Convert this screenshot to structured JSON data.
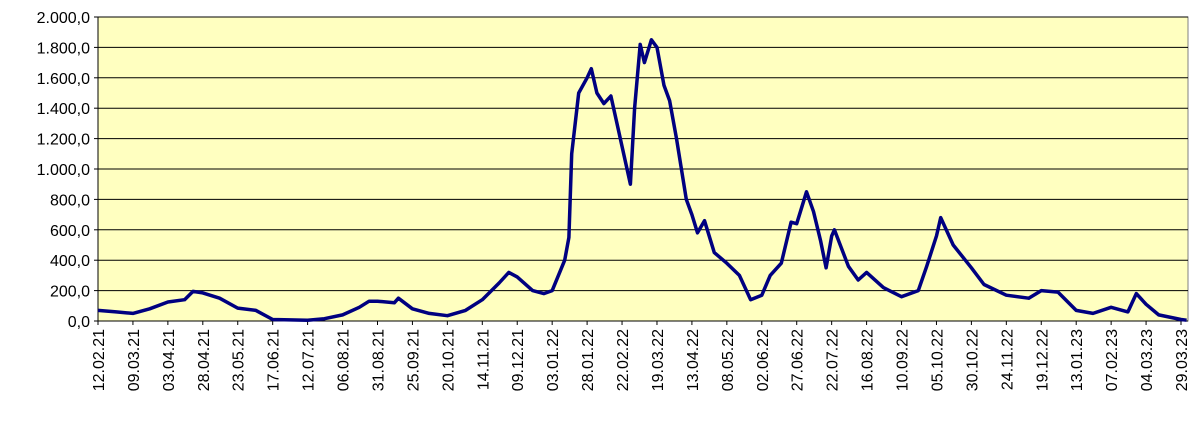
{
  "chart_data": {
    "type": "line",
    "x": [
      "12.02.21",
      "25.02.21",
      "09.03.21",
      "21.03.21",
      "03.04.21",
      "15.04.21",
      "21.04.21",
      "28.04.21",
      "10.05.21",
      "23.05.21",
      "05.06.21",
      "17.06.21",
      "12.07.21",
      "24.07.21",
      "06.08.21",
      "18.08.21",
      "25.08.21",
      "31.08.21",
      "12.09.21",
      "15.09.21",
      "25.09.21",
      "07.10.21",
      "20.10.21",
      "02.11.21",
      "14.11.21",
      "26.11.21",
      "03.12.21",
      "09.12.21",
      "20.12.21",
      "28.12.21",
      "03.01.22",
      "12.01.22",
      "15.01.22",
      "17.01.22",
      "22.01.22",
      "28.01.22",
      "31.01.22",
      "04.02.22",
      "09.02.22",
      "14.02.22",
      "22.02.22",
      "28.02.22",
      "03.03.22",
      "07.03.22",
      "10.03.22",
      "15.03.22",
      "19.03.22",
      "24.03.22",
      "28.03.22",
      "02.04.22",
      "09.04.22",
      "13.04.22",
      "17.04.22",
      "22.04.22",
      "29.04.22",
      "08.05.22",
      "17.05.22",
      "20.05.22",
      "25.05.22",
      "02.06.22",
      "08.06.22",
      "16.06.22",
      "23.06.22",
      "27.06.22",
      "04.07.22",
      "09.07.22",
      "14.07.22",
      "18.07.22",
      "22.07.22",
      "24.07.22",
      "03.08.22",
      "10.08.22",
      "16.08.22",
      "28.08.22",
      "10.09.22",
      "22.09.22",
      "28.09.22",
      "05.10.22",
      "08.10.22",
      "17.10.22",
      "30.10.22",
      "08.11.22",
      "24.11.22",
      "10.12.22",
      "19.12.22",
      "31.12.22",
      "13.01.23",
      "25.01.23",
      "07.02.23",
      "19.02.23",
      "25.02.23",
      "04.03.23",
      "13.03.23",
      "29.03.23",
      "02.04.23"
    ],
    "series": [
      {
        "color": "#000080",
        "values": [
          70,
          60,
          50,
          80,
          125,
          140,
          195,
          185,
          150,
          85,
          70,
          10,
          5,
          15,
          40,
          90,
          130,
          130,
          120,
          150,
          80,
          50,
          35,
          70,
          140,
          250,
          320,
          290,
          200,
          180,
          200,
          400,
          550,
          1100,
          1500,
          1600,
          1660,
          1500,
          1430,
          1480,
          1150,
          900,
          1400,
          1820,
          1700,
          1850,
          1800,
          1550,
          1450,
          1200,
          800,
          700,
          580,
          660,
          450,
          380,
          300,
          240,
          140,
          170,
          300,
          380,
          650,
          640,
          850,
          720,
          530,
          350,
          560,
          600,
          360,
          270,
          320,
          220,
          160,
          200,
          360,
          560,
          680,
          500,
          350,
          240,
          170,
          150,
          200,
          190,
          70,
          50,
          90,
          60,
          180,
          110,
          40,
          10,
          5
        ]
      }
    ],
    "xlim": [
      "12.02.21",
      "03.04.23"
    ],
    "xticks": [
      "12.02.21",
      "09.03.21",
      "03.04.21",
      "28.04.21",
      "23.05.21",
      "17.06.21",
      "12.07.21",
      "06.08.21",
      "31.08.21",
      "25.09.21",
      "20.10.21",
      "14.11.21",
      "09.12.21",
      "03.01.22",
      "28.01.22",
      "22.02.22",
      "19.03.22",
      "13.04.22",
      "08.05.22",
      "02.06.22",
      "27.06.22",
      "22.07.22",
      "16.08.22",
      "10.09.22",
      "05.10.22",
      "30.10.22",
      "24.11.22",
      "19.12.22",
      "13.01.23",
      "07.02.23",
      "04.03.23",
      "29.03.23"
    ],
    "ylim": [
      0,
      2000
    ],
    "yticks": [
      {
        "value": 0,
        "label": "0,0"
      },
      {
        "value": 200,
        "label": "200,0"
      },
      {
        "value": 400,
        "label": "400,0"
      },
      {
        "value": 600,
        "label": "600,0"
      },
      {
        "value": 800,
        "label": "800,0"
      },
      {
        "value": 1000,
        "label": "1.000,0"
      },
      {
        "value": 1200,
        "label": "1.200,0"
      },
      {
        "value": 1400,
        "label": "1.400,0"
      },
      {
        "value": 1600,
        "label": "1.600,0"
      },
      {
        "value": 1800,
        "label": "1.800,0"
      },
      {
        "value": 2000,
        "label": "2.000,0"
      }
    ],
    "grid": true
  }
}
